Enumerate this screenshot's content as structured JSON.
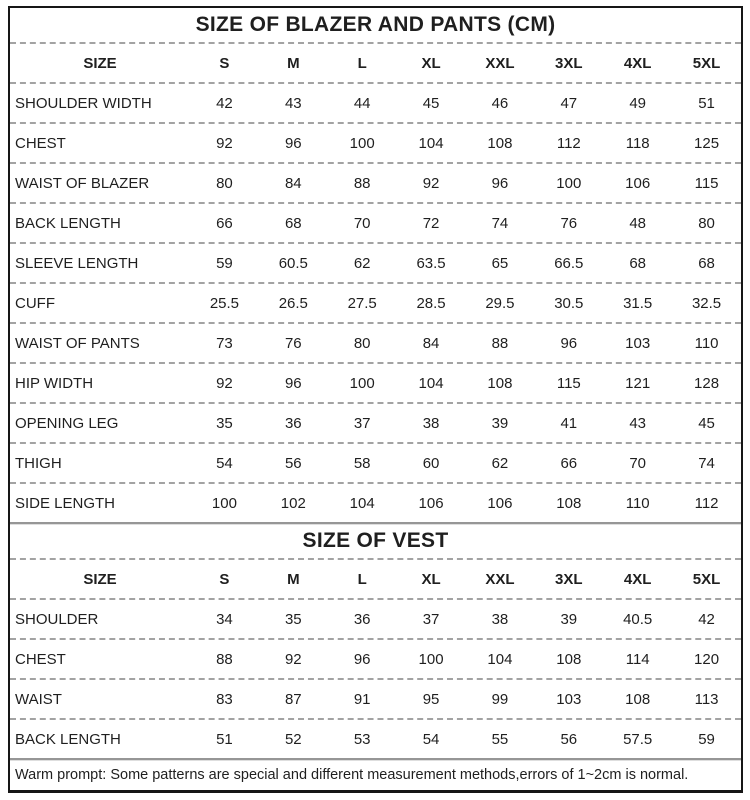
{
  "tables": [
    {
      "title": "SIZE OF BLAZER AND PANTS (CM)",
      "header": [
        "SIZE",
        "S",
        "M",
        "L",
        "XL",
        "XXL",
        "3XL",
        "4XL",
        "5XL"
      ],
      "rows": [
        {
          "label": "SHOULDER WIDTH",
          "values": [
            "42",
            "43",
            "44",
            "45",
            "46",
            "47",
            "49",
            "51"
          ]
        },
        {
          "label": "CHEST",
          "values": [
            "92",
            "96",
            "100",
            "104",
            "108",
            "112",
            "118",
            "125"
          ]
        },
        {
          "label": "WAIST OF BLAZER",
          "values": [
            "80",
            "84",
            "88",
            "92",
            "96",
            "100",
            "106",
            "115"
          ]
        },
        {
          "label": "BACK LENGTH",
          "values": [
            "66",
            "68",
            "70",
            "72",
            "74",
            "76",
            "48",
            "80"
          ]
        },
        {
          "label": "SLEEVE LENGTH",
          "values": [
            "59",
            "60.5",
            "62",
            "63.5",
            "65",
            "66.5",
            "68",
            "68"
          ]
        },
        {
          "label": "CUFF",
          "values": [
            "25.5",
            "26.5",
            "27.5",
            "28.5",
            "29.5",
            "30.5",
            "31.5",
            "32.5"
          ]
        },
        {
          "label": "WAIST OF PANTS",
          "values": [
            "73",
            "76",
            "80",
            "84",
            "88",
            "96",
            "103",
            "110"
          ]
        },
        {
          "label": "HIP WIDTH",
          "values": [
            "92",
            "96",
            "100",
            "104",
            "108",
            "115",
            "121",
            "128"
          ]
        },
        {
          "label": "OPENING LEG",
          "values": [
            "35",
            "36",
            "37",
            "38",
            "39",
            "41",
            "43",
            "45"
          ]
        },
        {
          "label": "THIGH",
          "values": [
            "54",
            "56",
            "58",
            "60",
            "62",
            "66",
            "70",
            "74"
          ]
        },
        {
          "label": "SIDE LENGTH",
          "values": [
            "100",
            "102",
            "104",
            "106",
            "106",
            "108",
            "110",
            "112"
          ]
        }
      ]
    },
    {
      "title": "SIZE OF VEST",
      "header": [
        "SIZE",
        "S",
        "M",
        "L",
        "XL",
        "XXL",
        "3XL",
        "4XL",
        "5XL"
      ],
      "rows": [
        {
          "label": "SHOULDER",
          "values": [
            "34",
            "35",
            "36",
            "37",
            "38",
            "39",
            "40.5",
            "42"
          ]
        },
        {
          "label": "CHEST",
          "values": [
            "88",
            "92",
            "96",
            "100",
            "104",
            "108",
            "114",
            "120"
          ]
        },
        {
          "label": "WAIST",
          "values": [
            "83",
            "87",
            "91",
            "95",
            "99",
            "103",
            "108",
            "113"
          ]
        },
        {
          "label": "BACK LENGTH",
          "values": [
            "51",
            "52",
            "53",
            "54",
            "55",
            "56",
            "57.5",
            "59"
          ]
        }
      ]
    }
  ],
  "footer": {
    "note": "Warm prompt: Some patterns are special and different  measurement methods,errors of 1~2cm is normal."
  },
  "colors": {
    "outer_border": "#161616",
    "dashed_separator": "#a3a3a3",
    "solid_divider": "#969696",
    "text": "#1f1f1f",
    "background": "#ffffff"
  }
}
